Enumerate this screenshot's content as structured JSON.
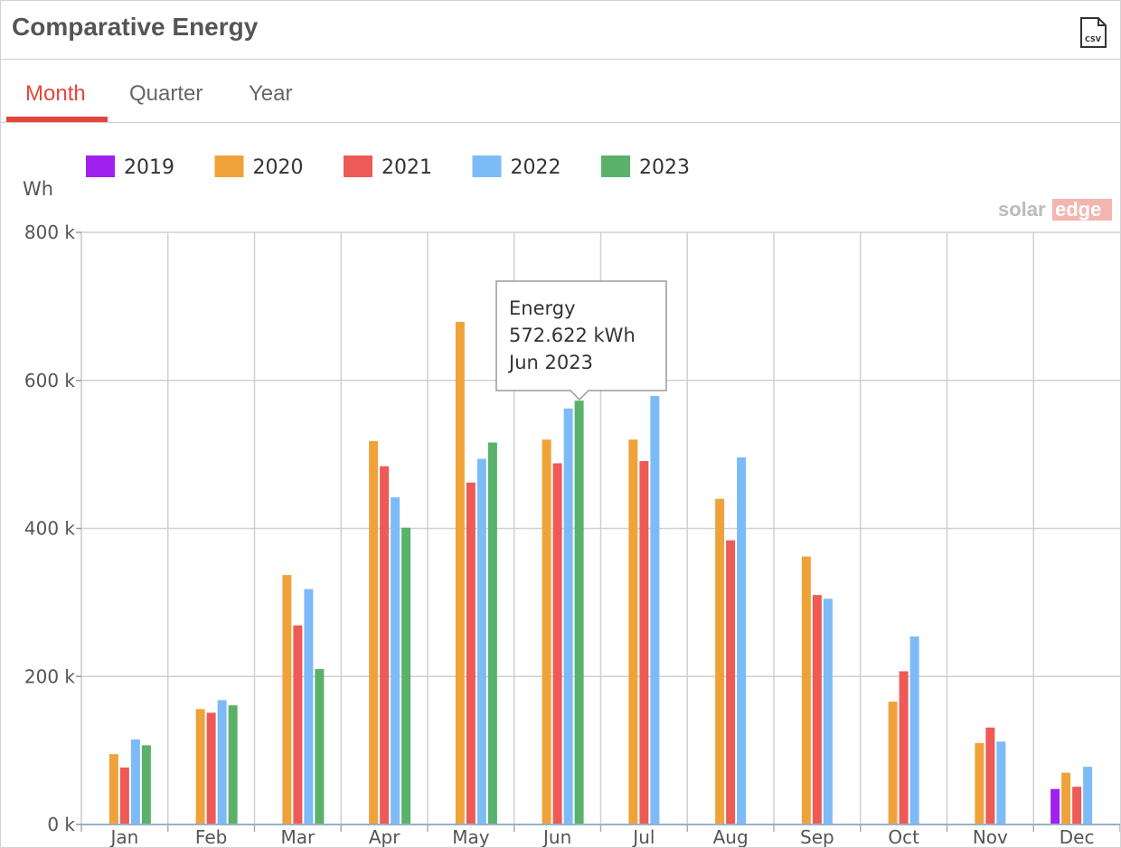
{
  "title": "Comparative Energy",
  "csv_icon_text": "CSV",
  "tabs": [
    {
      "label": "Month",
      "active": true
    },
    {
      "label": "Quarter",
      "active": false
    },
    {
      "label": "Year",
      "active": false
    }
  ],
  "watermark": "solaredge",
  "tooltip": {
    "line1": "Energy",
    "line2": "572.622 kWh",
    "line3": "Jun 2023"
  },
  "colors": {
    "accent": "#e4463b",
    "grid": "#cccccc"
  },
  "chart_data": {
    "type": "bar",
    "ylabel": "Wh",
    "ylim": [
      0,
      800
    ],
    "yticks": [
      "0 k",
      "200 k",
      "400 k",
      "600 k",
      "800 k"
    ],
    "ytick_values": [
      0,
      200,
      400,
      600,
      800
    ],
    "grid": true,
    "legend_position": "top-left",
    "categories": [
      "Jan",
      "Feb",
      "Mar",
      "Apr",
      "May",
      "Jun",
      "Jul",
      "Aug",
      "Sep",
      "Oct",
      "Nov",
      "Dec"
    ],
    "series": [
      {
        "name": "2019",
        "color": "#a020f0",
        "values": [
          null,
          null,
          null,
          null,
          null,
          null,
          null,
          null,
          null,
          null,
          null,
          48
        ]
      },
      {
        "name": "2020",
        "color": "#f0a23a",
        "values": [
          95,
          156,
          337,
          518,
          679,
          520,
          520,
          440,
          362,
          166,
          110,
          70
        ]
      },
      {
        "name": "2021",
        "color": "#ee5a55",
        "values": [
          77,
          151,
          269,
          484,
          462,
          488,
          491,
          384,
          310,
          207,
          131,
          51
        ]
      },
      {
        "name": "2022",
        "color": "#7dbbf7",
        "values": [
          115,
          168,
          318,
          442,
          494,
          562,
          579,
          496,
          305,
          254,
          112,
          78
        ]
      },
      {
        "name": "2023",
        "color": "#5ab16a",
        "values": [
          107,
          161,
          210,
          401,
          516,
          572.622,
          null,
          null,
          null,
          null,
          null,
          null
        ]
      }
    ]
  }
}
